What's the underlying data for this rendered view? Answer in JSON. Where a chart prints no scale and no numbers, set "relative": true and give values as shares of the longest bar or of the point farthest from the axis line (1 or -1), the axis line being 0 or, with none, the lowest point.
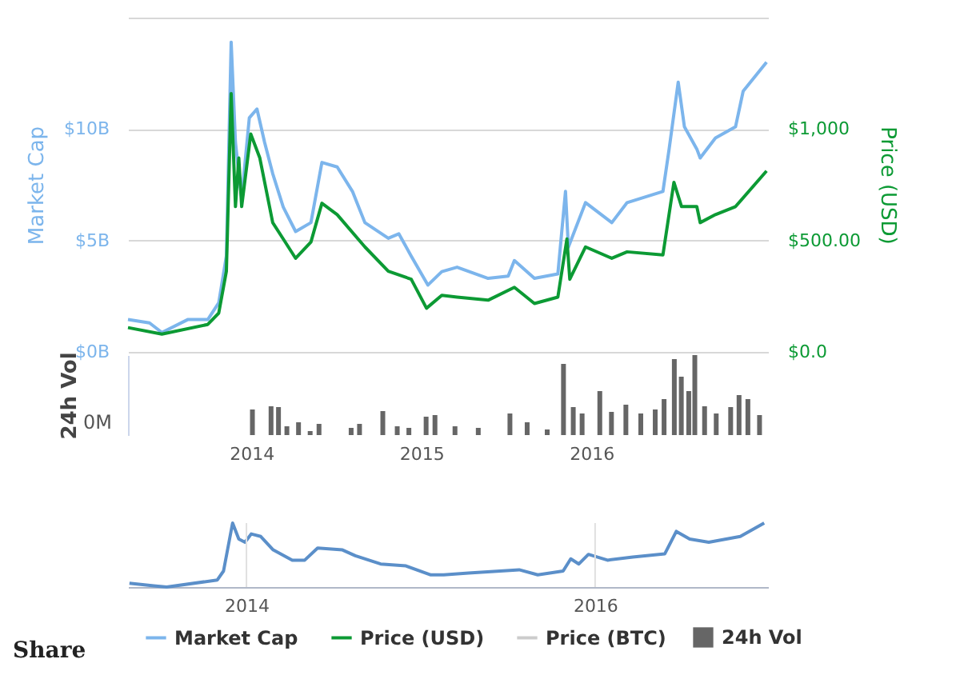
{
  "chart_data": [
    {
      "type": "line",
      "ylabel": "Market Cap",
      "y2label": "Price (USD)",
      "grid": "y",
      "tick_labels": "y",
      "legend": "bottom",
      "xlim": [
        "2013-04-28",
        "2016-12-28"
      ],
      "ylim": [
        0,
        15
      ],
      "yticks": [
        {
          "value": 0,
          "label": "$0B"
        },
        {
          "value": 5,
          "label": "$5B"
        },
        {
          "value": 10,
          "label": "$10B"
        },
        {
          "value": 15,
          "label": null
        }
      ],
      "y2lim": [
        0,
        1500
      ],
      "y2ticks": [
        {
          "value": 0,
          "label": "$0.0"
        },
        {
          "value": 500,
          "label": "$500.00"
        },
        {
          "value": 1000,
          "label": "$1,000"
        }
      ],
      "series": [
        {
          "name": "Market Cap",
          "color": "#7cb5ec",
          "x": [
            "2013-04-28",
            "2013-06-12",
            "2013-07-08",
            "2013-08-31",
            "2013-10-12",
            "2013-11-04",
            "2013-11-20",
            "2013-11-30",
            "2013-12-09",
            "2013-12-16",
            "2013-12-22",
            "2014-01-07",
            "2014-01-23",
            "2014-02-08",
            "2014-02-25",
            "2014-03-19",
            "2014-04-14",
            "2014-05-16",
            "2014-06-08",
            "2014-07-10",
            "2014-08-11",
            "2014-09-06",
            "2014-10-25",
            "2014-11-16",
            "2014-12-12",
            "2015-01-16",
            "2015-02-14",
            "2015-03-18",
            "2015-05-22",
            "2015-07-03",
            "2015-07-16",
            "2015-08-27",
            "2015-10-15",
            "2015-10-31",
            "2015-11-06",
            "2015-12-12",
            "2016-02-05",
            "2016-03-08",
            "2016-05-22",
            "2016-06-04",
            "2016-06-23",
            "2016-07-06",
            "2016-08-01",
            "2016-08-08",
            "2016-09-09",
            "2016-10-21",
            "2016-11-06",
            "2016-12-25"
          ],
          "values": [
            1.45,
            1.3,
            0.87,
            1.45,
            1.45,
            2.2,
            4.3,
            13.9,
            9.4,
            8.0,
            6.9,
            10.5,
            10.9,
            9.4,
            8.0,
            6.5,
            5.4,
            5.8,
            8.5,
            8.3,
            7.2,
            5.8,
            5.1,
            5.3,
            4.3,
            3.0,
            3.6,
            3.8,
            3.3,
            3.4,
            4.1,
            3.3,
            3.5,
            7.2,
            4.7,
            6.7,
            5.8,
            6.7,
            7.2,
            9.1,
            12.1,
            10.1,
            9.1,
            8.7,
            9.6,
            10.1,
            11.7,
            13.0
          ]
        },
        {
          "name": "Price (USD)",
          "color": "#0c9a34",
          "axis": "y2",
          "x": [
            "2013-04-28",
            "2013-07-08",
            "2013-10-12",
            "2013-11-04",
            "2013-11-20",
            "2013-11-30",
            "2013-12-09",
            "2013-12-16",
            "2013-12-22",
            "2014-01-10",
            "2014-01-29",
            "2014-02-25",
            "2014-03-19",
            "2014-04-14",
            "2014-05-16",
            "2014-06-08",
            "2014-07-10",
            "2014-09-06",
            "2014-10-25",
            "2014-12-12",
            "2015-01-13",
            "2015-02-14",
            "2015-03-18",
            "2015-05-22",
            "2015-07-16",
            "2015-08-27",
            "2015-10-15",
            "2015-11-03",
            "2015-11-09",
            "2015-12-12",
            "2016-02-05",
            "2016-03-08",
            "2016-05-22",
            "2016-06-14",
            "2016-06-30",
            "2016-08-01",
            "2016-08-08",
            "2016-09-09",
            "2016-10-21",
            "2016-12-25"
          ],
          "values": [
            109,
            80,
            123,
            174,
            362,
            1159,
            652,
            870,
            652,
            978,
            870,
            580,
            507,
            420,
            493,
            667,
            616,
            471,
            362,
            326,
            196,
            254,
            246,
            232,
            290,
            217,
            246,
            507,
            326,
            471,
            420,
            449,
            435,
            761,
            652,
            652,
            580,
            616,
            652,
            812
          ]
        },
        {
          "name": "Price (BTC)",
          "color": "#cccccc"
        }
      ]
    },
    {
      "type": "bar",
      "relative": true,
      "ylabel": "24h Vol",
      "legend": "bottom",
      "annotations": [
        "0M"
      ],
      "xlim": [
        "2013-04-28",
        "2016-12-28"
      ],
      "xticks": [
        "2014",
        "2015",
        "2016"
      ],
      "series": [
        {
          "name": "24h Vol",
          "color": "#666666",
          "x": [
            "2014-01-03",
            "2014-02-12",
            "2014-02-28",
            "2014-03-18",
            "2014-04-12",
            "2014-05-07",
            "2014-05-26",
            "2014-08-03",
            "2014-08-21",
            "2014-10-10",
            "2014-11-10",
            "2014-12-05",
            "2015-01-11",
            "2015-01-30",
            "2015-03-14",
            "2015-05-03",
            "2015-07-10",
            "2015-08-16",
            "2015-09-28",
            "2015-11-02",
            "2015-11-23",
            "2015-12-12",
            "2016-01-19",
            "2016-02-13",
            "2016-03-15",
            "2016-04-16",
            "2016-05-17",
            "2016-06-05",
            "2016-06-27",
            "2016-07-12",
            "2016-07-28",
            "2016-08-10",
            "2016-08-31",
            "2016-09-25",
            "2016-10-26",
            "2016-11-13",
            "2016-12-02",
            "2016-12-27"
          ],
          "values": [
            0.32,
            0.36,
            0.35,
            0.11,
            0.16,
            0.05,
            0.14,
            0.09,
            0.14,
            0.3,
            0.11,
            0.09,
            0.23,
            0.25,
            0.11,
            0.09,
            0.27,
            0.16,
            0.07,
            0.89,
            0.35,
            0.27,
            0.55,
            0.29,
            0.38,
            0.27,
            0.32,
            0.45,
            0.95,
            0.73,
            0.55,
            1.0,
            0.36,
            0.27,
            0.35,
            0.5,
            0.45,
            0.25
          ]
        }
      ]
    },
    {
      "type": "line",
      "relative": true,
      "grid": "x",
      "annotations": [
        "Share"
      ],
      "xlim": [
        "2013-04-28",
        "2016-12-28"
      ],
      "xticks": [
        "2014",
        "2016"
      ],
      "series": [
        {
          "color": "#5b8fc9",
          "x": [
            "2013-05-01",
            "2013-06-21",
            "2013-07-18",
            "2013-11-01",
            "2013-11-14",
            "2013-12-03",
            "2013-12-16",
            "2013-12-29",
            "2014-01-11",
            "2014-01-31",
            "2014-02-26",
            "2014-04-07",
            "2014-05-03",
            "2014-05-30",
            "2014-07-21",
            "2014-08-17",
            "2014-10-09",
            "2014-12-01",
            "2015-01-22",
            "2015-02-18",
            "2015-04-11",
            "2015-07-26",
            "2015-09-03",
            "2015-10-26",
            "2015-11-11",
            "2015-11-28",
            "2015-12-18",
            "2016-01-27",
            "2016-03-20",
            "2016-05-26",
            "2016-06-19",
            "2016-07-17",
            "2016-08-26",
            "2016-10-31",
            "2016-12-20"
          ],
          "values": [
            0.06,
            0.02,
            0,
            0.11,
            0.25,
            1,
            0.75,
            0.7,
            0.83,
            0.79,
            0.58,
            0.42,
            0.42,
            0.61,
            0.58,
            0.49,
            0.36,
            0.33,
            0.19,
            0.19,
            0.22,
            0.27,
            0.19,
            0.25,
            0.44,
            0.36,
            0.51,
            0.42,
            0.47,
            0.52,
            0.87,
            0.75,
            0.7,
            0.79,
            1
          ]
        }
      ]
    }
  ]
}
